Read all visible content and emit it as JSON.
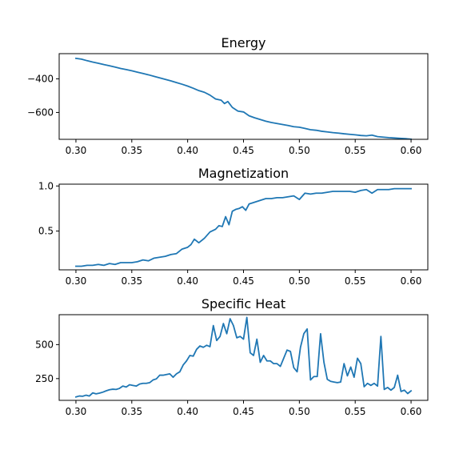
{
  "chart_data": [
    {
      "type": "line",
      "title": "Energy",
      "xlabel": "",
      "ylabel": "",
      "xlim": [
        0.285,
        0.615
      ],
      "ylim": [
        -760,
        -250
      ],
      "xticks": [
        0.3,
        0.35,
        0.4,
        0.45,
        0.5,
        0.55,
        0.6
      ],
      "xtick_labels": [
        "0.30",
        "0.35",
        "0.40",
        "0.45",
        "0.50",
        "0.55",
        "0.60"
      ],
      "yticks": [
        -400,
        -600
      ],
      "ytick_labels": [
        "−400",
        "−600"
      ],
      "grid": false,
      "series": [
        {
          "x": [
            0.3,
            0.305,
            0.31,
            0.315,
            0.32,
            0.325,
            0.33,
            0.335,
            0.34,
            0.345,
            0.35,
            0.355,
            0.36,
            0.365,
            0.37,
            0.375,
            0.38,
            0.385,
            0.39,
            0.395,
            0.4,
            0.405,
            0.41,
            0.415,
            0.42,
            0.425,
            0.43,
            0.433,
            0.436,
            0.44,
            0.445,
            0.45,
            0.455,
            0.46,
            0.465,
            0.47,
            0.475,
            0.48,
            0.485,
            0.49,
            0.495,
            0.5,
            0.505,
            0.51,
            0.515,
            0.52,
            0.525,
            0.53,
            0.535,
            0.54,
            0.545,
            0.55,
            0.555,
            0.56,
            0.565,
            0.57,
            0.575,
            0.58,
            0.585,
            0.59,
            0.595,
            0.6
          ],
          "y": [
            -278,
            -283,
            -292,
            -300,
            -307,
            -315,
            -322,
            -330,
            -338,
            -345,
            -352,
            -360,
            -368,
            -376,
            -385,
            -394,
            -403,
            -412,
            -422,
            -432,
            -443,
            -456,
            -470,
            -480,
            -497,
            -520,
            -527,
            -547,
            -535,
            -570,
            -592,
            -597,
            -620,
            -632,
            -642,
            -652,
            -660,
            -666,
            -672,
            -678,
            -685,
            -688,
            -695,
            -703,
            -706,
            -712,
            -716,
            -720,
            -723,
            -727,
            -730,
            -733,
            -737,
            -739,
            -735,
            -744,
            -747,
            -750,
            -752,
            -754,
            -756,
            -759
          ]
        }
      ]
    },
    {
      "type": "line",
      "title": "Magnetization",
      "xlabel": "",
      "ylabel": "",
      "xlim": [
        0.285,
        0.615
      ],
      "ylim": [
        0.07,
        1.02
      ],
      "xticks": [
        0.3,
        0.35,
        0.4,
        0.45,
        0.5,
        0.55,
        0.6
      ],
      "xtick_labels": [
        "0.30",
        "0.35",
        "0.40",
        "0.45",
        "0.50",
        "0.55",
        "0.60"
      ],
      "yticks": [
        1.0,
        0.5
      ],
      "ytick_labels": [
        "1.0",
        "0.5"
      ],
      "grid": false,
      "series": [
        {
          "x": [
            0.3,
            0.305,
            0.31,
            0.315,
            0.32,
            0.325,
            0.33,
            0.335,
            0.34,
            0.345,
            0.35,
            0.355,
            0.36,
            0.365,
            0.37,
            0.375,
            0.38,
            0.385,
            0.39,
            0.395,
            0.4,
            0.403,
            0.406,
            0.41,
            0.415,
            0.42,
            0.425,
            0.428,
            0.431,
            0.434,
            0.437,
            0.44,
            0.443,
            0.446,
            0.449,
            0.452,
            0.455,
            0.46,
            0.465,
            0.47,
            0.475,
            0.48,
            0.485,
            0.49,
            0.495,
            0.5,
            0.505,
            0.51,
            0.515,
            0.52,
            0.525,
            0.53,
            0.535,
            0.54,
            0.545,
            0.55,
            0.555,
            0.56,
            0.565,
            0.57,
            0.575,
            0.58,
            0.585,
            0.59,
            0.595,
            0.6
          ],
          "y": [
            0.11,
            0.11,
            0.12,
            0.12,
            0.13,
            0.12,
            0.14,
            0.13,
            0.15,
            0.15,
            0.15,
            0.16,
            0.18,
            0.17,
            0.2,
            0.21,
            0.22,
            0.24,
            0.25,
            0.3,
            0.32,
            0.35,
            0.41,
            0.37,
            0.42,
            0.49,
            0.52,
            0.56,
            0.55,
            0.66,
            0.57,
            0.72,
            0.74,
            0.75,
            0.77,
            0.73,
            0.8,
            0.82,
            0.84,
            0.86,
            0.86,
            0.87,
            0.87,
            0.88,
            0.89,
            0.85,
            0.92,
            0.91,
            0.92,
            0.92,
            0.93,
            0.94,
            0.94,
            0.94,
            0.94,
            0.93,
            0.95,
            0.96,
            0.92,
            0.96,
            0.96,
            0.96,
            0.97,
            0.97,
            0.97,
            0.97
          ]
        }
      ]
    },
    {
      "type": "line",
      "title": "Specific Heat",
      "xlabel": "",
      "ylabel": "",
      "xlim": [
        0.285,
        0.615
      ],
      "ylim": [
        90,
        720
      ],
      "xticks": [
        0.3,
        0.35,
        0.4,
        0.45,
        0.5,
        0.55,
        0.6
      ],
      "xtick_labels": [
        "0.30",
        "0.35",
        "0.40",
        "0.45",
        "0.50",
        "0.55",
        "0.60"
      ],
      "yticks": [
        500,
        250
      ],
      "ytick_labels": [
        "500",
        "250"
      ],
      "grid": false,
      "series": [
        {
          "x": [
            0.3,
            0.303,
            0.306,
            0.309,
            0.312,
            0.315,
            0.318,
            0.321,
            0.324,
            0.327,
            0.33,
            0.333,
            0.336,
            0.339,
            0.342,
            0.345,
            0.348,
            0.351,
            0.354,
            0.357,
            0.36,
            0.363,
            0.366,
            0.369,
            0.372,
            0.375,
            0.378,
            0.381,
            0.384,
            0.387,
            0.39,
            0.393,
            0.396,
            0.399,
            0.402,
            0.405,
            0.408,
            0.411,
            0.414,
            0.417,
            0.42,
            0.423,
            0.426,
            0.429,
            0.432,
            0.435,
            0.438,
            0.441,
            0.444,
            0.447,
            0.45,
            0.453,
            0.456,
            0.459,
            0.462,
            0.465,
            0.468,
            0.471,
            0.474,
            0.477,
            0.48,
            0.483,
            0.486,
            0.489,
            0.492,
            0.495,
            0.498,
            0.501,
            0.504,
            0.507,
            0.51,
            0.513,
            0.516,
            0.519,
            0.522,
            0.525,
            0.528,
            0.531,
            0.534,
            0.537,
            0.54,
            0.543,
            0.546,
            0.549,
            0.552,
            0.555,
            0.558,
            0.561,
            0.564,
            0.567,
            0.57,
            0.573,
            0.576,
            0.579,
            0.582,
            0.585,
            0.588,
            0.591,
            0.594,
            0.597,
            0.6
          ],
          "y": [
            115,
            122,
            120,
            128,
            122,
            145,
            138,
            143,
            150,
            160,
            168,
            172,
            170,
            178,
            195,
            188,
            205,
            200,
            195,
            210,
            215,
            215,
            220,
            240,
            248,
            275,
            275,
            280,
            285,
            260,
            285,
            300,
            350,
            380,
            420,
            415,
            465,
            490,
            480,
            495,
            485,
            640,
            530,
            560,
            655,
            580,
            690,
            640,
            550,
            560,
            540,
            700,
            440,
            420,
            540,
            370,
            420,
            380,
            380,
            360,
            360,
            340,
            400,
            460,
            450,
            330,
            300,
            480,
            580,
            615,
            240,
            265,
            265,
            580,
            370,
            245,
            230,
            225,
            220,
            225,
            360,
            270,
            335,
            260,
            400,
            360,
            190,
            215,
            200,
            215,
            195,
            560,
            170,
            185,
            165,
            185,
            275,
            155,
            165,
            140,
            160
          ]
        }
      ]
    }
  ]
}
